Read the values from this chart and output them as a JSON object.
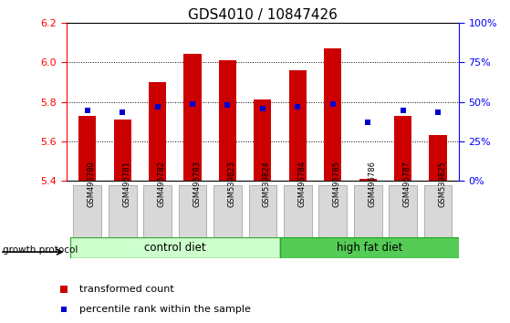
{
  "title": "GDS4010 / 10847426",
  "samples": [
    "GSM496780",
    "GSM496781",
    "GSM496782",
    "GSM496783",
    "GSM539823",
    "GSM539824",
    "GSM496784",
    "GSM496785",
    "GSM496786",
    "GSM496787",
    "GSM539825"
  ],
  "bar_bottom": 5.4,
  "bar_tops": [
    5.73,
    5.71,
    5.9,
    6.04,
    6.01,
    5.81,
    5.96,
    6.07,
    5.41,
    5.73,
    5.63
  ],
  "percentile_values": [
    5.755,
    5.745,
    5.775,
    5.79,
    5.785,
    5.765,
    5.775,
    5.79,
    5.695,
    5.755,
    5.745
  ],
  "ylim_left": [
    5.4,
    6.2
  ],
  "ylim_right": [
    0,
    100
  ],
  "yticks_left": [
    5.4,
    5.6,
    5.8,
    6.0,
    6.2
  ],
  "yticks_right": [
    0,
    25,
    50,
    75,
    100
  ],
  "bar_color": "#cc0000",
  "dot_color": "#0000cc",
  "control_label": "control diet",
  "high_fat_label": "high fat diet",
  "growth_label": "growth protocol",
  "legend_items": [
    "transformed count",
    "percentile rank within the sample"
  ],
  "bg_color_control": "#ccffcc",
  "bg_color_highfat": "#55cc55",
  "bg_color_xticklabel": "#d8d8d8",
  "title_fontsize": 11,
  "tick_fontsize": 8
}
